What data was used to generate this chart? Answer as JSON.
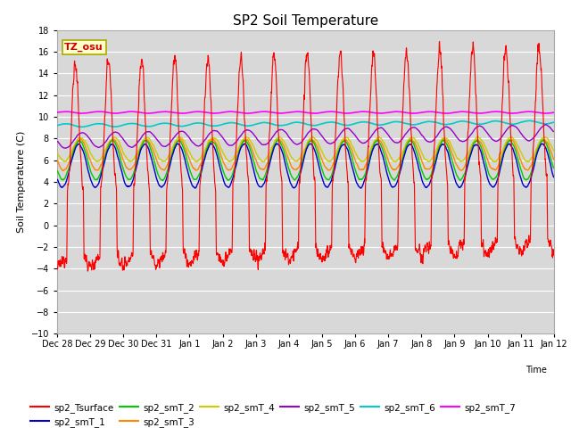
{
  "title": "SP2 Soil Temperature",
  "xlabel": "Time",
  "ylabel": "Soil Temperature (C)",
  "ylim": [
    -10,
    18
  ],
  "yticks": [
    -10,
    -8,
    -6,
    -4,
    -2,
    0,
    2,
    4,
    6,
    8,
    10,
    12,
    14,
    16,
    18
  ],
  "xtick_labels": [
    "Dec 28",
    "Dec 29",
    "Dec 30",
    "Dec 31",
    "Jan 1",
    "Jan 2",
    "Jan 3",
    "Jan 4",
    "Jan 5",
    "Jan 6",
    "Jan 7",
    "Jan 8",
    "Jan 9",
    "Jan 10",
    "Jan 11",
    "Jan 12"
  ],
  "bg_color": "#d8d8d8",
  "grid_color": "#ffffff",
  "colors": {
    "sp2_Tsurface": "#ff0000",
    "sp2_smT_1": "#0000cc",
    "sp2_smT_2": "#00cc00",
    "sp2_smT_3": "#ff8800",
    "sp2_smT_4": "#cccc00",
    "sp2_smT_5": "#9900cc",
    "sp2_smT_6": "#00cccc",
    "sp2_smT_7": "#ff00ff"
  },
  "tz_label": "TZ_osu",
  "n_days": 15,
  "pts_per_day": 144
}
